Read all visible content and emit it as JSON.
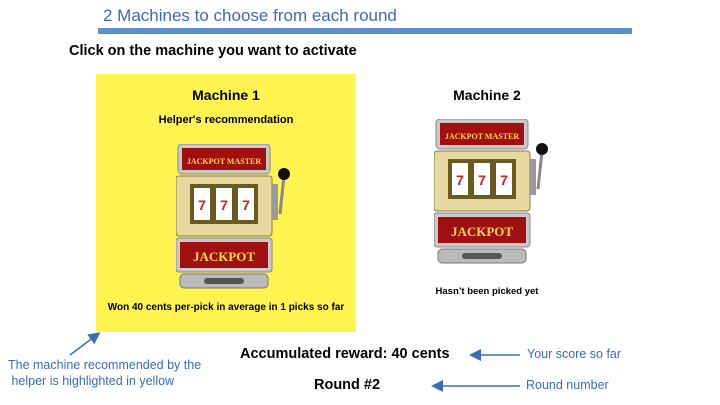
{
  "slide_title": "2 Machines to choose from each round",
  "instruction": "Click on the machine you want to activate",
  "machines": [
    {
      "title": "Machine 1",
      "helper": "Helper's recommendation",
      "status": "Won 40 cents per-pick in average in 1 picks so far",
      "highlighted": true
    },
    {
      "title": "Machine 2",
      "helper": "",
      "status": "Hasn’t been picked yet",
      "highlighted": false
    }
  ],
  "slot_sign": "JACKPOT",
  "slot_marquee": "JACKPOT MASTER",
  "reward_text": "Accumulated reward: 40 cents",
  "round_text": "Round #2",
  "annotations": {
    "recommend_line1": "The machine recommended by the",
    "recommend_line2": " helper is highlighted in yellow",
    "score": "Your score so far",
    "round": "Round number"
  },
  "colors": {
    "highlight": "#fff44f",
    "annotation": "#3d6bb3",
    "bar": "#5b8fd0"
  }
}
